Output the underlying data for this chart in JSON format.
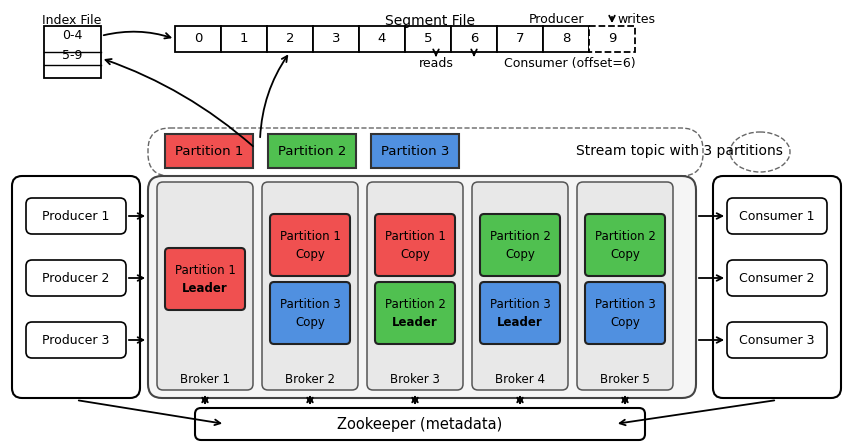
{
  "bg_color": "#ffffff",
  "segment_cells": [
    "0",
    "1",
    "2",
    "3",
    "4",
    "5",
    "6",
    "7",
    "8",
    "9"
  ],
  "partition_colors": [
    "#f05050",
    "#50c050",
    "#5090e0"
  ],
  "partition_labels": [
    "Partition 1",
    "Partition 2",
    "Partition 3"
  ],
  "broker_partitions": {
    "Broker 1": [
      {
        "label1": "Partition 1",
        "label2": "Leader",
        "color": "#f05050",
        "bold": true
      }
    ],
    "Broker 2": [
      {
        "label1": "Partition 1",
        "label2": "Copy",
        "color": "#f05050",
        "bold": false
      },
      {
        "label1": "Partition 3",
        "label2": "Copy",
        "color": "#5090e0",
        "bold": false
      }
    ],
    "Broker 3": [
      {
        "label1": "Partition 1",
        "label2": "Copy",
        "color": "#f05050",
        "bold": false
      },
      {
        "label1": "Partition 2",
        "label2": "Leader",
        "color": "#50c050",
        "bold": true
      }
    ],
    "Broker 4": [
      {
        "label1": "Partition 2",
        "label2": "Copy",
        "color": "#50c050",
        "bold": false
      },
      {
        "label1": "Partition 3",
        "label2": "Leader",
        "color": "#5090e0",
        "bold": true
      }
    ],
    "Broker 5": [
      {
        "label1": "Partition 2",
        "label2": "Copy",
        "color": "#50c050",
        "bold": false
      },
      {
        "label1": "Partition 3",
        "label2": "Copy",
        "color": "#5090e0",
        "bold": false
      }
    ]
  },
  "producers": [
    "Producer 1",
    "Producer 2",
    "Producer 3"
  ],
  "consumers": [
    "Consumer 1",
    "Consumer 2",
    "Consumer 3"
  ],
  "segment_file_label": "Segment File",
  "index_file_label": "Index File",
  "stream_topic_label": "Stream topic with 3 partitions",
  "zookeeper_label": "Zookeeper (metadata)",
  "producer_label": "Producer",
  "writes_label": "writes",
  "reads_label": "reads",
  "consumer_label": "Consumer (offset=6)"
}
